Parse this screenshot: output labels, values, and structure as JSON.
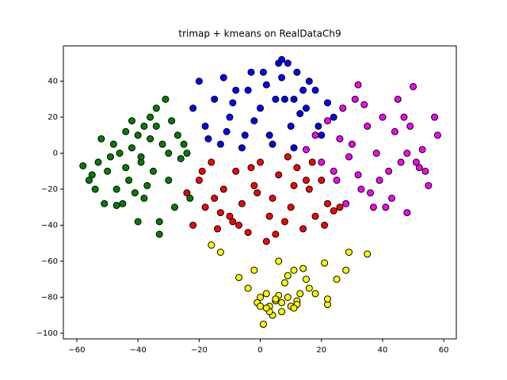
{
  "chart_data": {
    "type": "scatter",
    "title": "trimap + kmeans on RealDataCh9",
    "xlim": [
      -64.4,
      64.1
    ],
    "ylim": [
      -103.1,
      59.6
    ],
    "xticks": [
      {
        "value": -60,
        "label": "−60"
      },
      {
        "value": -40,
        "label": "−40"
      },
      {
        "value": -20,
        "label": "−20"
      },
      0,
      20,
      40,
      60
    ],
    "yticks": [
      {
        "value": -100,
        "label": "−100"
      },
      {
        "value": -80,
        "label": "−80"
      },
      {
        "value": -60,
        "label": "−60"
      },
      {
        "value": -40,
        "label": "−40"
      },
      {
        "value": -20,
        "label": "−20"
      },
      0,
      20,
      40
    ],
    "grid": false,
    "series": [
      {
        "color": "green",
        "x": [
          -58,
          -56,
          -55,
          -53,
          -52,
          -50,
          -49,
          -48,
          -47,
          -46,
          -45,
          -44,
          -43,
          -42,
          -41,
          -40,
          -39,
          -38,
          -37,
          -36,
          -35,
          -34,
          -33,
          -32,
          -31,
          -30,
          -29,
          -28,
          -27,
          -26,
          -25,
          -24,
          -23,
          -54,
          -51,
          -47,
          -44,
          -40,
          -38,
          -33,
          -30,
          -36,
          -42,
          -39,
          -34
        ],
        "values": [
          -7,
          -15,
          -12,
          -5,
          8,
          -10,
          -2,
          5,
          -20,
          0,
          -28,
          12,
          -15,
          3,
          -22,
          10,
          -5,
          15,
          -18,
          20,
          -10,
          25,
          -38,
          5,
          30,
          -15,
          18,
          -30,
          10,
          -3,
          5,
          0,
          -25,
          -20,
          -28,
          -29,
          -8,
          -38,
          -25,
          -45,
          0,
          8,
          18,
          -2,
          15
        ]
      },
      {
        "color": "blue",
        "x": [
          -22,
          -20,
          -18,
          -15,
          -12,
          -10,
          -8,
          -5,
          -3,
          0,
          2,
          4,
          6,
          8,
          10,
          12,
          15,
          18,
          20,
          22,
          24,
          -17,
          -13,
          -6,
          -2,
          3,
          7,
          11,
          14,
          19,
          -9,
          1,
          5,
          9,
          16,
          -4,
          13,
          7,
          11,
          -11
        ],
        "values": [
          25,
          40,
          15,
          30,
          42,
          20,
          35,
          10,
          45,
          25,
          38,
          5,
          50,
          30,
          15,
          45,
          25,
          35,
          10,
          28,
          20,
          8,
          5,
          3,
          18,
          10,
          52,
          3,
          35,
          15,
          28,
          45,
          30,
          50,
          40,
          35,
          22,
          42,
          30,
          12
        ]
      },
      {
        "color": "red",
        "x": [
          -24,
          -22,
          -20,
          -18,
          -16,
          -14,
          -12,
          -10,
          -8,
          -6,
          -4,
          -2,
          0,
          2,
          4,
          6,
          8,
          10,
          12,
          14,
          16,
          18,
          20,
          22,
          24,
          26,
          -19,
          -15,
          -9,
          -3,
          3,
          9,
          15,
          21,
          -13,
          -1,
          5,
          11,
          17,
          -7
        ],
        "values": [
          -22,
          -40,
          -15,
          -30,
          -5,
          -42,
          -20,
          -35,
          -10,
          -28,
          -44,
          -18,
          -5,
          -49,
          -25,
          -12,
          -38,
          -30,
          -8,
          -42,
          -20,
          -35,
          -15,
          -28,
          -32,
          -30,
          -10,
          -25,
          -38,
          -8,
          -35,
          -2,
          -15,
          -40,
          -33,
          -22,
          -45,
          -18,
          -5,
          -40
        ]
      },
      {
        "color": "magenta",
        "x": [
          15,
          18,
          20,
          22,
          25,
          27,
          28,
          30,
          32,
          33,
          35,
          37,
          38,
          40,
          42,
          43,
          45,
          46,
          48,
          49,
          50,
          52,
          53,
          55,
          57,
          58,
          24,
          29,
          34,
          39,
          44,
          47,
          51,
          36,
          31,
          26,
          41,
          54,
          48,
          32
        ],
        "values": [
          2,
          10,
          -5,
          18,
          -15,
          25,
          -28,
          5,
          38,
          -20,
          15,
          -30,
          0,
          20,
          -10,
          -25,
          30,
          -5,
          -33,
          15,
          37,
          -8,
          2,
          -18,
          20,
          10,
          -10,
          -2,
          27,
          -15,
          12,
          20,
          -5,
          -22,
          30,
          8,
          -30,
          -10,
          0,
          -12
        ]
      },
      {
        "color": "yellow",
        "x": [
          -16,
          -13,
          -7,
          -4,
          -2,
          0,
          1,
          2,
          3,
          4,
          5,
          6,
          7,
          8,
          9,
          10,
          11,
          12,
          13,
          14,
          15,
          16,
          18,
          21,
          22,
          25,
          28,
          29,
          35,
          -1,
          0,
          3,
          6,
          9,
          12,
          2,
          5,
          7,
          11,
          22
        ],
        "values": [
          -51,
          -55,
          -69,
          -75,
          -65,
          -80,
          -95,
          -78,
          -85,
          -90,
          -82,
          -60,
          -88,
          -72,
          -80,
          -85,
          -65,
          -82,
          -78,
          -64,
          -70,
          -75,
          -78,
          -61,
          -84,
          -70,
          -65,
          -55,
          -56,
          -83,
          -85,
          -88,
          -79,
          -68,
          -84,
          -86,
          -81,
          -83,
          -86,
          -81
        ]
      }
    ]
  }
}
